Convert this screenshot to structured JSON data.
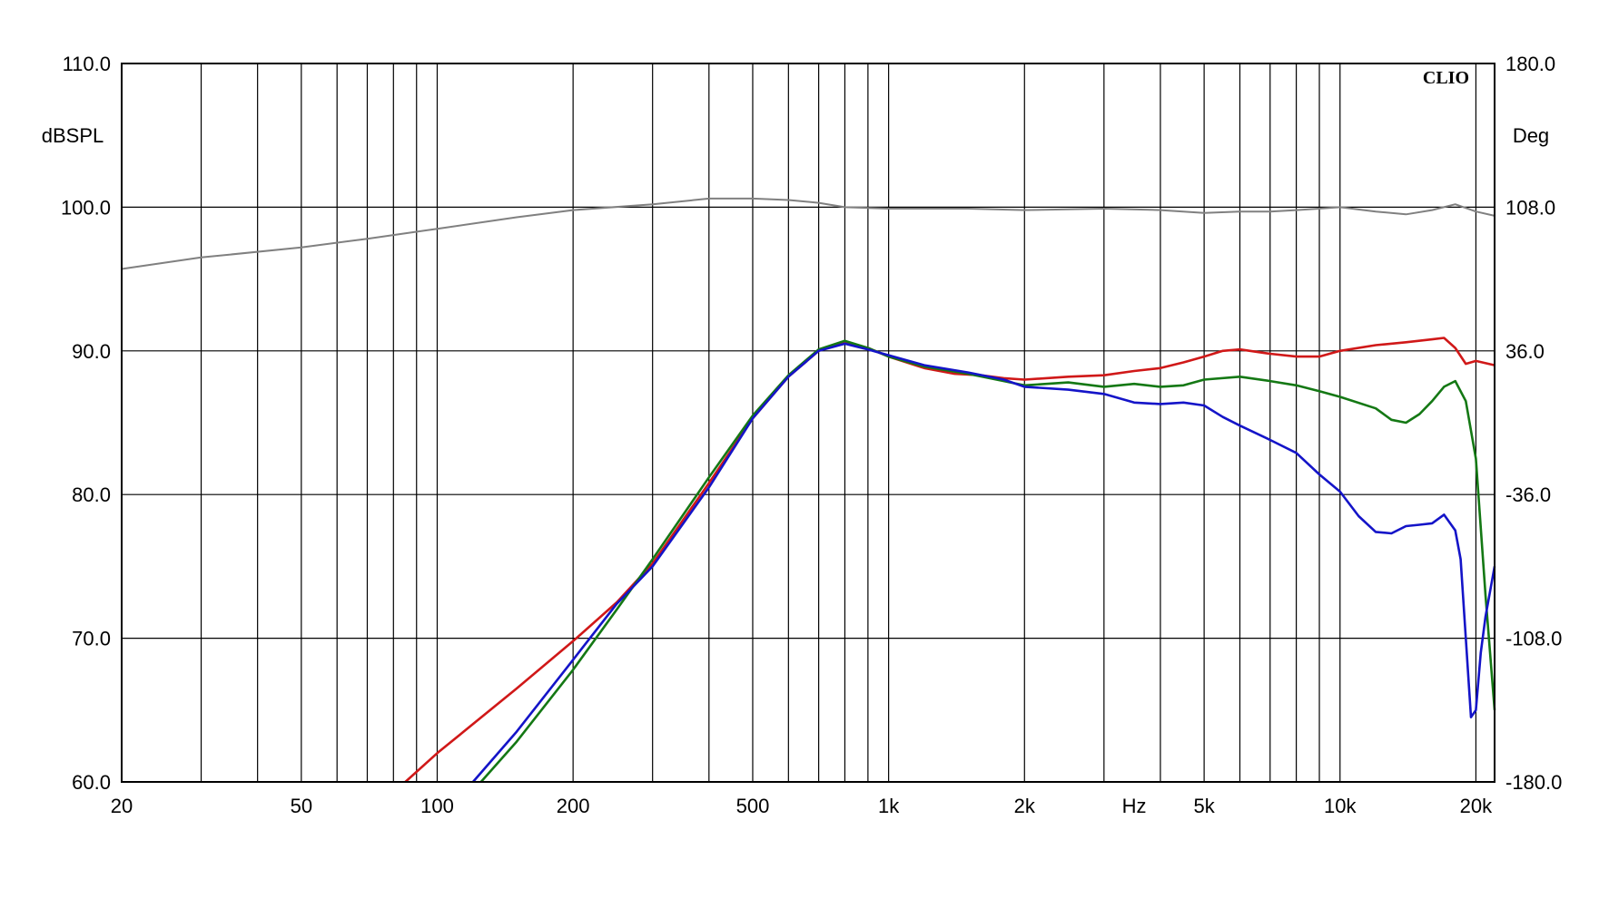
{
  "chart_data": {
    "type": "line",
    "brand": "CLIO",
    "xlabel": "Hz",
    "ylabel_left": "dBSPL",
    "ylabel_right": "Deg",
    "x_scale": "log",
    "xlim": [
      20,
      22000
    ],
    "ylim": [
      60,
      110
    ],
    "y2lim": [
      -180,
      180
    ],
    "grid": true,
    "x_ticks": [
      {
        "value": 20,
        "label": "20"
      },
      {
        "value": 50,
        "label": "50"
      },
      {
        "value": 100,
        "label": "100"
      },
      {
        "value": 200,
        "label": "200"
      },
      {
        "value": 500,
        "label": "500"
      },
      {
        "value": 1000,
        "label": "1k"
      },
      {
        "value": 2000,
        "label": "2k"
      },
      {
        "value": 3500,
        "label": "Hz"
      },
      {
        "value": 5000,
        "label": "5k"
      },
      {
        "value": 10000,
        "label": "10k"
      },
      {
        "value": 20000,
        "label": "20k"
      }
    ],
    "y_ticks_left": [
      {
        "value": 110,
        "label": "110.0"
      },
      {
        "value": 100,
        "label": "100.0"
      },
      {
        "value": 90,
        "label": "90.0"
      },
      {
        "value": 80,
        "label": "80.0"
      },
      {
        "value": 70,
        "label": "70.0"
      },
      {
        "value": 60,
        "label": "60.0"
      }
    ],
    "y_ticks_right": [
      {
        "value": 110,
        "label": "180.0"
      },
      {
        "value": 100,
        "label": "108.0"
      },
      {
        "value": 90,
        "label": "36.0"
      },
      {
        "value": 80,
        "label": "-36.0"
      },
      {
        "value": 70,
        "label": "-108.0"
      },
      {
        "value": 60,
        "label": "-180.0"
      }
    ],
    "series": [
      {
        "color": "#808080",
        "points": [
          [
            20,
            95.7
          ],
          [
            30,
            96.5
          ],
          [
            50,
            97.2
          ],
          [
            70,
            97.8
          ],
          [
            100,
            98.5
          ],
          [
            150,
            99.3
          ],
          [
            200,
            99.8
          ],
          [
            300,
            100.2
          ],
          [
            400,
            100.6
          ],
          [
            500,
            100.6
          ],
          [
            600,
            100.5
          ],
          [
            700,
            100.3
          ],
          [
            800,
            100.0
          ],
          [
            1000,
            99.9
          ],
          [
            1500,
            99.9
          ],
          [
            2000,
            99.8
          ],
          [
            3000,
            99.9
          ],
          [
            4000,
            99.8
          ],
          [
            5000,
            99.6
          ],
          [
            6000,
            99.7
          ],
          [
            7000,
            99.7
          ],
          [
            8000,
            99.8
          ],
          [
            9000,
            99.9
          ],
          [
            10000,
            100.0
          ],
          [
            12000,
            99.7
          ],
          [
            14000,
            99.5
          ],
          [
            16000,
            99.8
          ],
          [
            18000,
            100.2
          ],
          [
            20000,
            99.7
          ],
          [
            22000,
            99.4
          ]
        ]
      },
      {
        "color": "#d01818",
        "points": [
          [
            85,
            60.0
          ],
          [
            100,
            62.0
          ],
          [
            150,
            66.5
          ],
          [
            200,
            69.8
          ],
          [
            250,
            72.5
          ],
          [
            300,
            75.2
          ],
          [
            400,
            80.8
          ],
          [
            500,
            85.3
          ],
          [
            600,
            88.2
          ],
          [
            700,
            90.0
          ],
          [
            800,
            90.6
          ],
          [
            900,
            90.2
          ],
          [
            1000,
            89.6
          ],
          [
            1200,
            88.8
          ],
          [
            1400,
            88.4
          ],
          [
            1600,
            88.3
          ],
          [
            1800,
            88.1
          ],
          [
            2000,
            88.0
          ],
          [
            2500,
            88.2
          ],
          [
            3000,
            88.3
          ],
          [
            3500,
            88.6
          ],
          [
            4000,
            88.8
          ],
          [
            4500,
            89.2
          ],
          [
            5000,
            89.6
          ],
          [
            5500,
            90.0
          ],
          [
            6000,
            90.1
          ],
          [
            7000,
            89.8
          ],
          [
            8000,
            89.6
          ],
          [
            9000,
            89.6
          ],
          [
            10000,
            90.0
          ],
          [
            12000,
            90.4
          ],
          [
            14000,
            90.6
          ],
          [
            16000,
            90.8
          ],
          [
            17000,
            90.9
          ],
          [
            18000,
            90.2
          ],
          [
            19000,
            89.1
          ],
          [
            20000,
            89.3
          ],
          [
            22000,
            89.0
          ]
        ]
      },
      {
        "color": "#147814",
        "points": [
          [
            125,
            60.0
          ],
          [
            150,
            62.8
          ],
          [
            200,
            67.8
          ],
          [
            250,
            72.0
          ],
          [
            300,
            75.5
          ],
          [
            400,
            81.2
          ],
          [
            500,
            85.5
          ],
          [
            600,
            88.3
          ],
          [
            700,
            90.1
          ],
          [
            800,
            90.7
          ],
          [
            900,
            90.2
          ],
          [
            1000,
            89.6
          ],
          [
            1200,
            88.9
          ],
          [
            1500,
            88.4
          ],
          [
            1800,
            87.9
          ],
          [
            2000,
            87.6
          ],
          [
            2500,
            87.8
          ],
          [
            3000,
            87.5
          ],
          [
            3500,
            87.7
          ],
          [
            4000,
            87.5
          ],
          [
            4500,
            87.6
          ],
          [
            5000,
            88.0
          ],
          [
            6000,
            88.2
          ],
          [
            7000,
            87.9
          ],
          [
            8000,
            87.6
          ],
          [
            9000,
            87.2
          ],
          [
            10000,
            86.8
          ],
          [
            12000,
            86.0
          ],
          [
            13000,
            85.2
          ],
          [
            14000,
            85.0
          ],
          [
            15000,
            85.6
          ],
          [
            16000,
            86.5
          ],
          [
            17000,
            87.5
          ],
          [
            18000,
            87.9
          ],
          [
            19000,
            86.5
          ],
          [
            20000,
            82.5
          ],
          [
            21000,
            73.0
          ],
          [
            22000,
            65.0
          ]
        ]
      },
      {
        "color": "#1414c8",
        "points": [
          [
            120,
            60.0
          ],
          [
            150,
            63.5
          ],
          [
            200,
            68.5
          ],
          [
            250,
            72.4
          ],
          [
            300,
            75.0
          ],
          [
            400,
            80.5
          ],
          [
            500,
            85.3
          ],
          [
            600,
            88.2
          ],
          [
            700,
            90.0
          ],
          [
            800,
            90.5
          ],
          [
            900,
            90.1
          ],
          [
            1000,
            89.7
          ],
          [
            1200,
            89.0
          ],
          [
            1500,
            88.5
          ],
          [
            1800,
            88.0
          ],
          [
            2000,
            87.5
          ],
          [
            2500,
            87.3
          ],
          [
            3000,
            87.0
          ],
          [
            3500,
            86.4
          ],
          [
            4000,
            86.3
          ],
          [
            4500,
            86.4
          ],
          [
            5000,
            86.2
          ],
          [
            5500,
            85.4
          ],
          [
            6000,
            84.8
          ],
          [
            7000,
            83.8
          ],
          [
            8000,
            82.9
          ],
          [
            9000,
            81.4
          ],
          [
            10000,
            80.2
          ],
          [
            11000,
            78.5
          ],
          [
            12000,
            77.4
          ],
          [
            13000,
            77.3
          ],
          [
            14000,
            77.8
          ],
          [
            15000,
            77.9
          ],
          [
            16000,
            78.0
          ],
          [
            17000,
            78.6
          ],
          [
            18000,
            77.5
          ],
          [
            18500,
            75.5
          ],
          [
            19000,
            70.0
          ],
          [
            19500,
            64.5
          ],
          [
            20000,
            65.0
          ],
          [
            20500,
            69.0
          ],
          [
            21000,
            71.5
          ],
          [
            22000,
            75.0
          ]
        ]
      }
    ]
  }
}
